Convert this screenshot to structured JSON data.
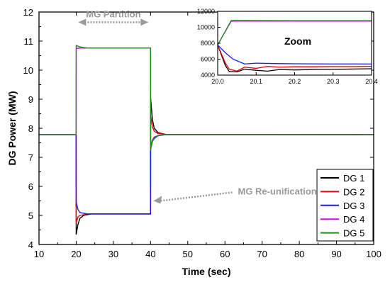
{
  "chart_data": {
    "type": "line",
    "xlabel": "Time (sec)",
    "ylabel": "DG Power (MW)",
    "xlim": [
      10,
      100
    ],
    "ylim": [
      4,
      12
    ],
    "xticks": [
      10,
      20,
      30,
      40,
      50,
      60,
      70,
      80,
      90,
      100
    ],
    "yticks": [
      4,
      5,
      6,
      7,
      8,
      9,
      10,
      11,
      12
    ],
    "legend_position": "bottom-right",
    "series": [
      {
        "name": "DG 1",
        "color": "#000000",
        "points": [
          [
            10,
            7.78
          ],
          [
            19.99,
            7.78
          ],
          [
            20.0,
            4.35
          ],
          [
            20.5,
            4.7
          ],
          [
            21.0,
            4.9
          ],
          [
            22.0,
            5.0
          ],
          [
            24.0,
            5.05
          ],
          [
            40.0,
            5.05
          ],
          [
            40.01,
            9.05
          ],
          [
            40.5,
            8.3
          ],
          [
            41.0,
            8.0
          ],
          [
            42.0,
            7.85
          ],
          [
            44.0,
            7.79
          ],
          [
            100,
            7.78
          ]
        ]
      },
      {
        "name": "DG 2",
        "color": "#e8000b",
        "points": [
          [
            10,
            7.78
          ],
          [
            19.99,
            7.78
          ],
          [
            20.0,
            4.75
          ],
          [
            20.5,
            4.95
          ],
          [
            21.0,
            5.0
          ],
          [
            23.0,
            5.05
          ],
          [
            40.0,
            5.05
          ],
          [
            40.01,
            8.45
          ],
          [
            40.5,
            8.05
          ],
          [
            41.0,
            7.9
          ],
          [
            42.0,
            7.82
          ],
          [
            44.0,
            7.79
          ],
          [
            100,
            7.78
          ]
        ]
      },
      {
        "name": "DG 3",
        "color": "#1a1aff",
        "points": [
          [
            10,
            7.78
          ],
          [
            19.99,
            7.78
          ],
          [
            20.0,
            5.45
          ],
          [
            20.5,
            5.2
          ],
          [
            21.0,
            5.1
          ],
          [
            23.0,
            5.05
          ],
          [
            40.0,
            5.05
          ],
          [
            40.01,
            7.3
          ],
          [
            40.5,
            7.55
          ],
          [
            41.0,
            7.65
          ],
          [
            42.0,
            7.74
          ],
          [
            44.0,
            7.78
          ],
          [
            100,
            7.78
          ]
        ]
      },
      {
        "name": "DG 4",
        "color": "#e000e0",
        "points": [
          [
            10,
            7.78
          ],
          [
            19.99,
            7.78
          ],
          [
            20.0,
            10.75
          ],
          [
            21.0,
            10.76
          ],
          [
            40.0,
            10.76
          ],
          [
            40.01,
            7.4
          ],
          [
            40.5,
            7.6
          ],
          [
            41.0,
            7.7
          ],
          [
            42.0,
            7.75
          ],
          [
            44.0,
            7.78
          ],
          [
            100,
            7.78
          ]
        ]
      },
      {
        "name": "DG 5",
        "color": "#1e8c1e",
        "points": [
          [
            10,
            7.78
          ],
          [
            19.99,
            7.78
          ],
          [
            20.0,
            10.85
          ],
          [
            21.0,
            10.8
          ],
          [
            23.0,
            10.76
          ],
          [
            40.0,
            10.76
          ],
          [
            40.01,
            7.25
          ],
          [
            40.5,
            7.55
          ],
          [
            41.0,
            7.68
          ],
          [
            42.0,
            7.75
          ],
          [
            44.0,
            7.78
          ],
          [
            100,
            7.78
          ]
        ]
      }
    ],
    "annotations": [
      {
        "text": "MG Partition"
      },
      {
        "text": "MG Re-unification"
      }
    ],
    "inset": {
      "title": "Zoom",
      "xlim": [
        20.0,
        20.4
      ],
      "ylim": [
        4000,
        12000
      ],
      "xticks": [
        "20.0",
        "20.1",
        "20.2",
        "20.3",
        "20.4"
      ],
      "xtick_values": [
        20.0,
        20.1,
        20.2,
        20.3,
        20.4
      ],
      "yticks": [
        "4000",
        "6000",
        "8000",
        "10000",
        "12000"
      ],
      "ytick_values": [
        4000,
        6000,
        8000,
        10000,
        12000
      ],
      "series": [
        {
          "name": "DG 1",
          "color": "#000000",
          "points": [
            [
              20.0,
              7780
            ],
            [
              20.02,
              5200
            ],
            [
              20.03,
              4450
            ],
            [
              20.05,
              4400
            ],
            [
              20.07,
              4750
            ],
            [
              20.1,
              4600
            ],
            [
              20.13,
              4500
            ],
            [
              20.16,
              4700
            ],
            [
              20.2,
              4650
            ],
            [
              20.25,
              4700
            ],
            [
              20.3,
              4720
            ],
            [
              20.35,
              4760
            ],
            [
              20.4,
              4800
            ]
          ]
        },
        {
          "name": "DG 2",
          "color": "#e8000b",
          "points": [
            [
              20.0,
              7780
            ],
            [
              20.02,
              5500
            ],
            [
              20.03,
              4750
            ],
            [
              20.05,
              4500
            ],
            [
              20.07,
              5000
            ],
            [
              20.1,
              4850
            ],
            [
              20.13,
              5100
            ],
            [
              20.16,
              5000
            ],
            [
              20.2,
              5050
            ],
            [
              20.25,
              5050
            ],
            [
              20.3,
              5080
            ],
            [
              20.35,
              5080
            ],
            [
              20.4,
              5100
            ]
          ]
        },
        {
          "name": "DG 3",
          "color": "#1a1aff",
          "points": [
            [
              20.0,
              7780
            ],
            [
              20.02,
              6800
            ],
            [
              20.04,
              6000
            ],
            [
              20.07,
              5400
            ],
            [
              20.1,
              5500
            ],
            [
              20.15,
              5450
            ],
            [
              20.2,
              5420
            ],
            [
              20.3,
              5400
            ],
            [
              20.4,
              5400
            ]
          ]
        },
        {
          "name": "DG 4",
          "color": "#e000e0",
          "points": [
            [
              20.0,
              7780
            ],
            [
              20.035,
              10750
            ],
            [
              20.05,
              10780
            ],
            [
              20.2,
              10770
            ],
            [
              20.4,
              10770
            ]
          ]
        },
        {
          "name": "DG 5",
          "color": "#1e8c1e",
          "points": [
            [
              20.0,
              7780
            ],
            [
              20.035,
              10850
            ],
            [
              20.05,
              10850
            ],
            [
              20.2,
              10830
            ],
            [
              20.4,
              10830
            ]
          ]
        }
      ]
    }
  }
}
